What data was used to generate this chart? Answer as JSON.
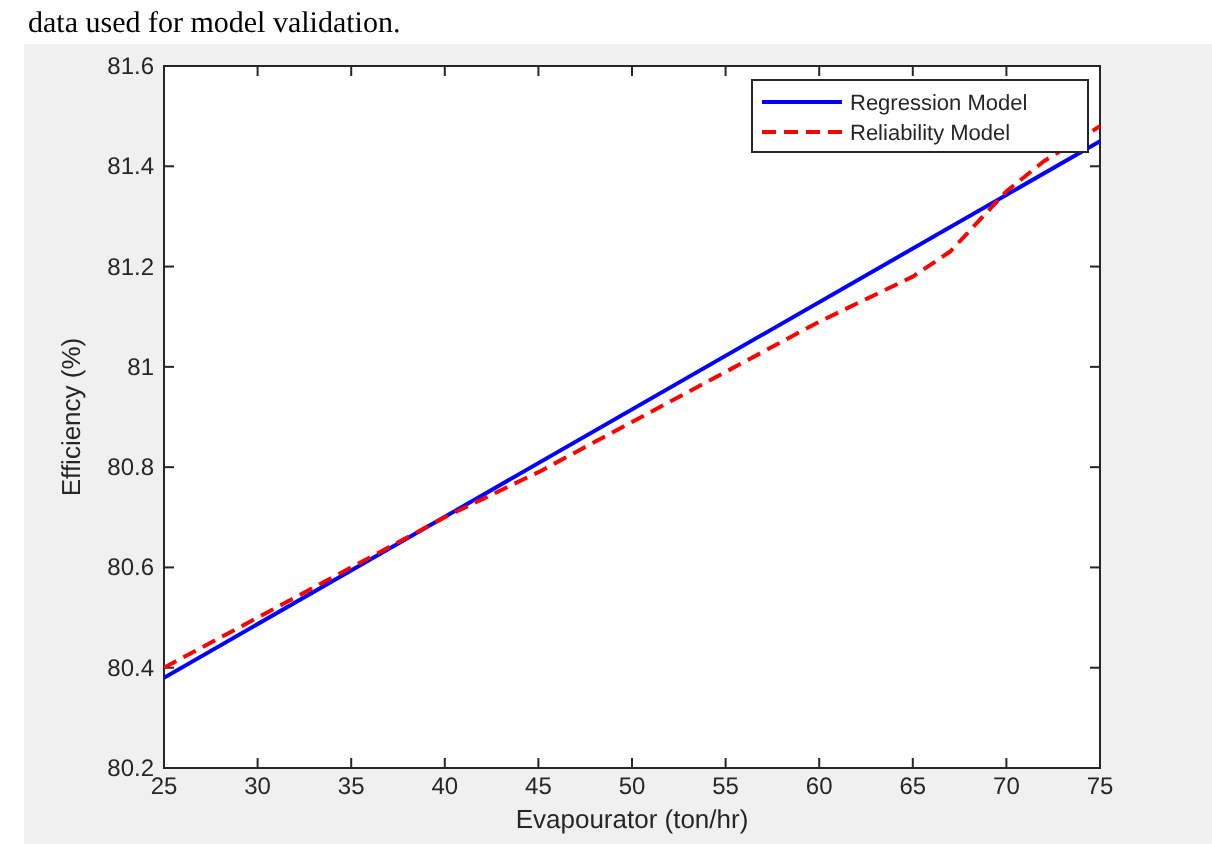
{
  "chart_data": {
    "type": "line",
    "xlabel": "Evapourator (ton/hr)",
    "ylabel": "Efficiency (%)",
    "annotations": [
      "data used for model validation."
    ],
    "xlim": [
      25,
      75
    ],
    "xticks": [
      25,
      30,
      35,
      40,
      45,
      50,
      55,
      60,
      65,
      70,
      75
    ],
    "ylim": [
      80.2,
      81.6
    ],
    "yticks": [
      80.2,
      80.4,
      80.6,
      80.8,
      81,
      81.2,
      81.4,
      81.6
    ],
    "grid": false,
    "legend": "top right",
    "series": [
      {
        "name": "Regression Model",
        "color": "#0000ff",
        "line_style": "solid",
        "x": [
          25,
          75
        ],
        "values": [
          80.38,
          81.45
        ]
      },
      {
        "name": "Reliability Model",
        "color": "#ff0000",
        "line_style": "dashed",
        "x": [
          25,
          30,
          35,
          40,
          45,
          50,
          55,
          60,
          65,
          67,
          70,
          72,
          75
        ],
        "values": [
          80.4,
          80.5,
          80.6,
          80.7,
          80.79,
          80.89,
          80.99,
          81.09,
          81.18,
          81.23,
          81.35,
          81.41,
          81.48
        ]
      }
    ]
  }
}
